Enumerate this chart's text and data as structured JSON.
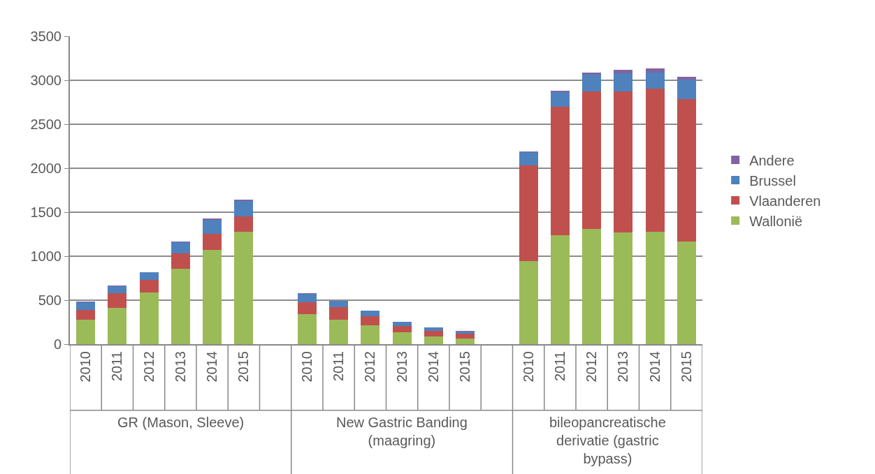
{
  "chart_data": {
    "type": "bar",
    "stacked": true,
    "categories": [
      "2010",
      "2011",
      "2012",
      "2013",
      "2014",
      "2015",
      null,
      "2010",
      "2011",
      "2012",
      "2013",
      "2014",
      "2015",
      null,
      "2010",
      "2011",
      "2012",
      "2013",
      "2014",
      "2015"
    ],
    "series": [
      {
        "name": "Wallonië",
        "color": "#9bbb59",
        "values": [
          278,
          415,
          585,
          855,
          1070,
          1280,
          null,
          340,
          280,
          217,
          135,
          90,
          64,
          null,
          945,
          1235,
          1312,
          1270,
          1277,
          1167
        ]
      },
      {
        "name": "Vlaanderen",
        "color": "#c0504d",
        "values": [
          113,
          165,
          148,
          175,
          185,
          175,
          null,
          140,
          143,
          103,
          69,
          61,
          53,
          null,
          1090,
          1465,
          1563,
          1605,
          1626,
          1615
        ]
      },
      {
        "name": "Brussel",
        "color": "#4f81bd",
        "values": [
          88,
          79,
          82,
          132,
          155,
          175,
          null,
          95,
          69,
          61,
          48,
          40,
          28,
          null,
          151,
          164,
          190,
          206,
          186,
          228
        ]
      },
      {
        "name": "Andere",
        "color": "#8064a2",
        "values": [
          5,
          8,
          5,
          8,
          20,
          10,
          null,
          5,
          3,
          3,
          2,
          2,
          7,
          null,
          6,
          19,
          26,
          39,
          42,
          31
        ]
      }
    ],
    "ylim": [
      0,
      3500
    ],
    "yticks": [
      0,
      500,
      1000,
      1500,
      2000,
      2500,
      3000,
      3500
    ],
    "grid": "y",
    "legend": "right",
    "annotations": [
      "GR (Mason, Sleeve)",
      "New Gastric Banding (maagring)",
      "bileopancreatische derivatie (gastric bypass)"
    ]
  }
}
